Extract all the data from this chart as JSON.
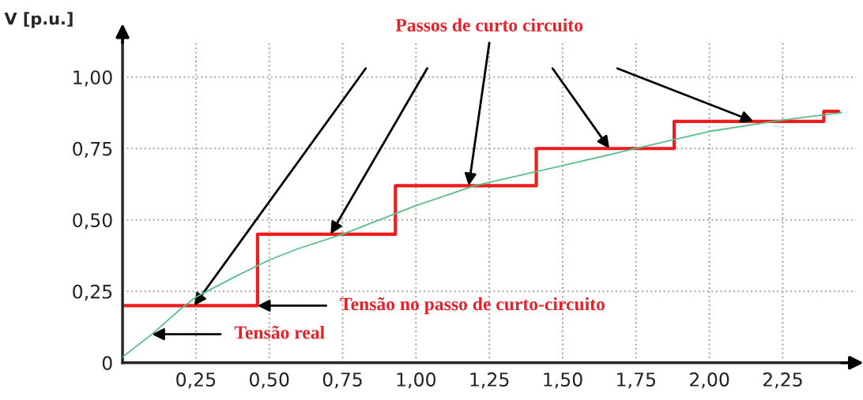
{
  "chart_data": {
    "type": "line",
    "ylabel": "V [p.u.]",
    "series": [
      {
        "color": "#5cbf8a",
        "x": [
          0,
          0.1,
          0.2,
          0.25,
          0.4,
          0.5,
          0.6,
          0.75,
          1.0,
          1.2,
          1.5,
          1.75,
          2.0,
          2.25,
          2.45
        ],
        "values": [
          0.02,
          0.1,
          0.19,
          0.23,
          0.31,
          0.36,
          0.4,
          0.45,
          0.55,
          0.62,
          0.69,
          0.75,
          0.81,
          0.85,
          0.875
        ]
      },
      {
        "type": "step",
        "color": "#ee1c1c",
        "x": [
          0,
          0.46,
          0.93,
          1.41,
          1.88,
          2.39,
          2.44
        ],
        "values": [
          0.2,
          0.45,
          0.62,
          0.75,
          0.845,
          0.88,
          0.88
        ]
      }
    ],
    "annotations": [
      {
        "text": "Passos de curto circuito",
        "x": 1.18,
        "y": 0.62
      },
      {
        "text": "Tensão no passo de curto-circuito",
        "x": 0.46,
        "y": 0.2
      },
      {
        "text": "Tensão real",
        "x": 0.1,
        "y": 0.1
      }
    ],
    "xlim": [
      0,
      2.5
    ],
    "ylim": [
      0,
      1.12
    ],
    "xticks": [
      {
        "value": 0.25,
        "label": "0,25"
      },
      {
        "value": 0.5,
        "label": "0,50"
      },
      {
        "value": 0.75,
        "label": "0,75"
      },
      {
        "value": 1.0,
        "label": "1,00"
      },
      {
        "value": 1.25,
        "label": "1,25"
      },
      {
        "value": 1.5,
        "label": "1,50"
      },
      {
        "value": 1.75,
        "label": "1,75"
      },
      {
        "value": 2.0,
        "label": "2,00"
      },
      {
        "value": 2.25,
        "label": "2,25"
      }
    ],
    "yticks": [
      0,
      {
        "value": 0.25,
        "label": "0,25"
      },
      {
        "value": 0.5,
        "label": "0,50"
      },
      {
        "value": 0.75,
        "label": "0,75"
      },
      {
        "value": 1.0,
        "label": "1,00"
      }
    ],
    "grid": true
  }
}
